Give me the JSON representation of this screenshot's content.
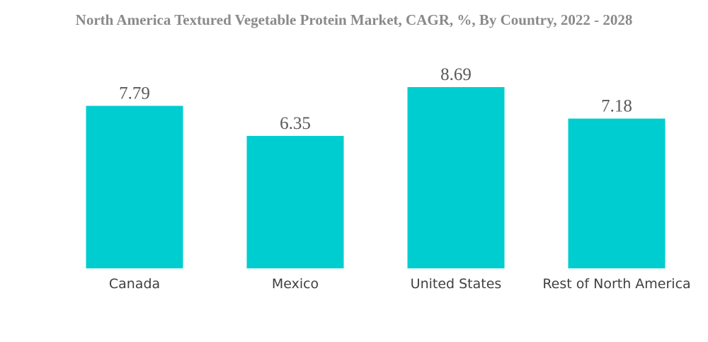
{
  "colors": {
    "bar": "#00CDCF",
    "title": "#8a8a8a",
    "value_label": "#595959",
    "axis_label": "#404040"
  },
  "chart_data": {
    "type": "bar",
    "title": "North America Textured Vegetable Protein Market, CAGR, %, By Country, 2022 - 2028",
    "categories": [
      "Canada",
      "Mexico",
      "United States",
      "Rest of North America"
    ],
    "values": [
      7.79,
      6.35,
      8.69,
      7.18
    ],
    "value_labels": [
      "7.79",
      "6.35",
      "8.69",
      "7.18"
    ],
    "xlabel": "",
    "ylabel": "",
    "ylim": [
      0,
      8.69
    ],
    "grid": false,
    "legend": "none"
  }
}
